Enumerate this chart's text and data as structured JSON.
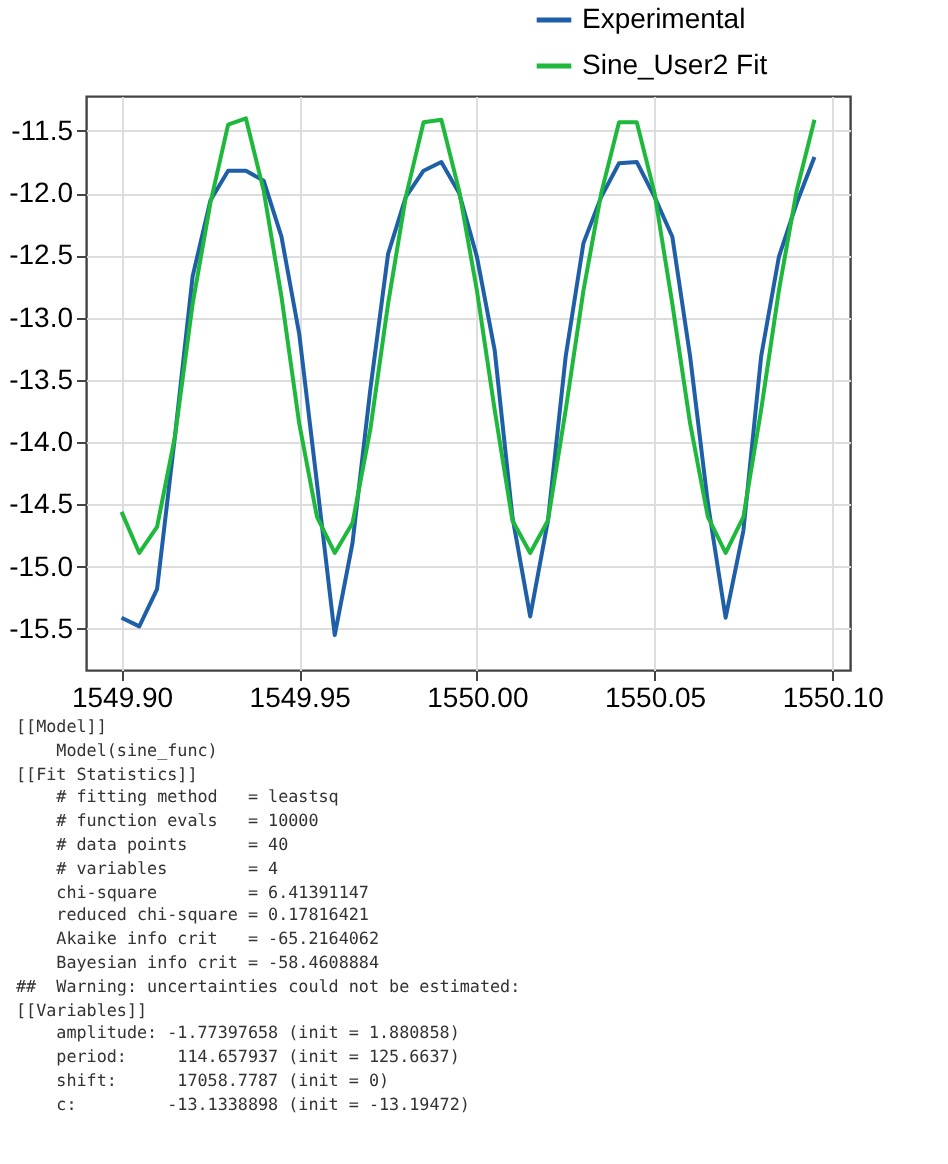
{
  "chart_data": {
    "type": "line",
    "x": [
      1549.9,
      1549.905,
      1549.91,
      1549.915,
      1549.92,
      1549.925,
      1549.93,
      1549.935,
      1549.94,
      1549.945,
      1549.95,
      1549.955,
      1549.96,
      1549.965,
      1549.97,
      1549.975,
      1549.98,
      1549.985,
      1549.99,
      1549.995,
      1550.0,
      1550.005,
      1550.01,
      1550.015,
      1550.02,
      1550.025,
      1550.03,
      1550.035,
      1550.04,
      1550.045,
      1550.05,
      1550.055,
      1550.06,
      1550.065,
      1550.07,
      1550.075,
      1550.08,
      1550.085,
      1550.09,
      1550.095
    ],
    "series": [
      {
        "name": "Experimental",
        "color": "#1f5fa8",
        "values": [
          -15.41,
          -15.48,
          -15.18,
          -13.96,
          -12.67,
          -12.06,
          -11.82,
          -11.82,
          -11.9,
          -12.35,
          -13.13,
          -14.33,
          -15.55,
          -14.81,
          -13.58,
          -12.49,
          -12.03,
          -11.82,
          -11.75,
          -12.0,
          -12.51,
          -13.26,
          -14.6,
          -15.4,
          -14.63,
          -13.31,
          -12.4,
          -12.03,
          -11.76,
          -11.75,
          -12.03,
          -12.35,
          -13.31,
          -14.49,
          -15.41,
          -14.71,
          -13.31,
          -12.51,
          -12.08,
          -11.71
        ]
      },
      {
        "name": "Sine_User2 Fit",
        "color": "#1db83c",
        "values": [
          -14.56,
          -14.89,
          -14.68,
          -13.96,
          -12.89,
          -12.08,
          -11.45,
          -11.4,
          -11.98,
          -12.83,
          -13.85,
          -14.6,
          -14.89,
          -14.65,
          -13.9,
          -12.89,
          -12.03,
          -11.43,
          -11.41,
          -11.98,
          -12.78,
          -13.74,
          -14.63,
          -14.89,
          -14.63,
          -13.74,
          -12.78,
          -12.0,
          -11.43,
          -11.43,
          -12.0,
          -12.89,
          -13.85,
          -14.6,
          -14.89,
          -14.6,
          -13.74,
          -12.78,
          -11.98,
          -11.41
        ]
      }
    ],
    "xlim": [
      1549.89,
      1550.105
    ],
    "xticks": [
      {
        "value": 1549.9,
        "label": "1549.90"
      },
      {
        "value": 1549.95,
        "label": "1549.95"
      },
      {
        "value": 1550.0,
        "label": "1550.00"
      },
      {
        "value": 1550.05,
        "label": "1550.05"
      },
      {
        "value": 1550.1,
        "label": "1550.10"
      }
    ],
    "ylim": [
      -15.83,
      -11.22
    ],
    "yticks": [
      {
        "value": -11.5,
        "label": "-11.5"
      },
      {
        "value": -12,
        "label": "-12.0"
      },
      {
        "value": -12.5,
        "label": "-12.5"
      },
      {
        "value": -13,
        "label": "-13.0"
      },
      {
        "value": -13.5,
        "label": "-13.5"
      },
      {
        "value": -14,
        "label": "-14.0"
      },
      {
        "value": -14.5,
        "label": "-14.5"
      },
      {
        "value": -15,
        "label": "-15.0"
      },
      {
        "value": -15.5,
        "label": "-15.5"
      }
    ],
    "grid": true,
    "legend": "top right",
    "annotations": [
      "[[Model]]",
      "    Model(sine_func)",
      "[[Fit Statistics]]",
      "    # fitting method   = leastsq",
      "    # function evals   = 10000",
      "    # data points      = 40",
      "    # variables        = 4",
      "    chi-square         = 6.41391147",
      "    reduced chi-square = 0.17816421",
      "    Akaike info crit   = -65.2164062",
      "    Bayesian info crit = -58.4608884",
      "##  Warning: uncertainties could not be estimated:",
      "[[Variables]]",
      "    amplitude: -1.77397658 (init = 1.880858)",
      "    period:     114.657937 (init = 125.6637)",
      "    shift:      17058.7787 (init = 0)",
      "    c:         -13.1338898 (init = -13.19472)"
    ]
  }
}
